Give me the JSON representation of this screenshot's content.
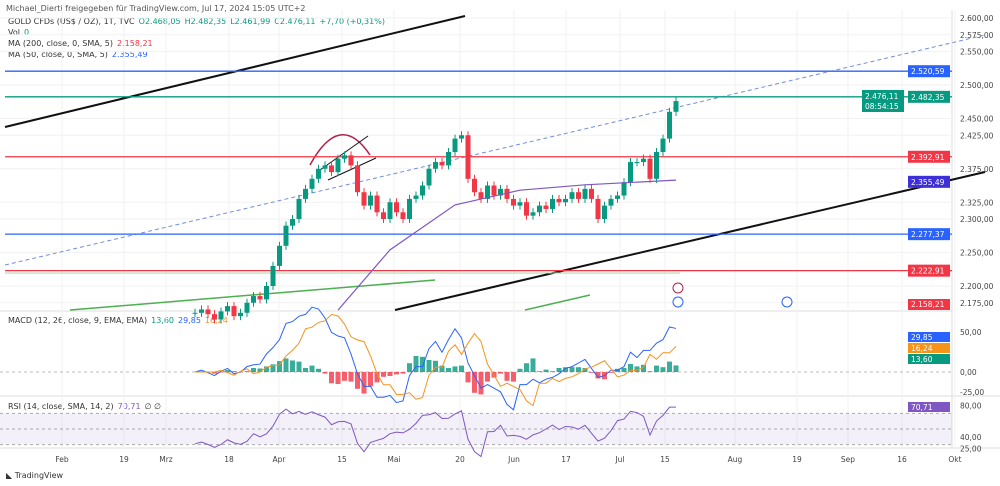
{
  "header": {
    "shared_by": "Michael_Dierti freigegeben für TradingView.com, Jul 17, 2024 15:05 UTC+2"
  },
  "legend": {
    "symbol": "GOLD CFDs (US$ / OZ), 1T, TVC",
    "o": "O2.468,05",
    "h": "H2.482,35",
    "l": "L2.461,99",
    "c": "C2.476,11",
    "chg": "+7,70 (+0,31%)",
    "vol_label": "Vol",
    "vol": "0",
    "ma200_label": "MA (200, close, 0, SMA, 5)",
    "ma200": "2.158,21",
    "ma50_label": "MA (50, close, 0, SMA, 5)",
    "ma50": "2.355,49"
  },
  "macd_legend": {
    "label": "MACD (12, 26, close, 9, EMA, EMA)",
    "hist": "13,60",
    "macd": "29,85",
    "signal": "16,24"
  },
  "rsi_legend": {
    "label": "RSI (14, close, SMA, 14, 2)",
    "rsi": "70,71",
    "extra": "∅ ∅"
  },
  "footer": {
    "brand": "TradingView"
  },
  "colors": {
    "up": "#089981",
    "down": "#f23645",
    "blue": "#2962ff",
    "ma50": "#7e57c2",
    "orange": "#f7931a"
  },
  "chart_data": {
    "type": "candlestick",
    "price_ticks": [
      "2.600,00",
      "2.575,00",
      "2.550,00",
      "2.500,00",
      "2.450,00",
      "2.425,00",
      "2.375,00",
      "2.325,00",
      "2.300,00",
      "2.250,00",
      "2.200,00",
      "2.175,00"
    ],
    "price_tick_values": [
      2600,
      2575,
      2550,
      2500,
      2450,
      2425,
      2375,
      2325,
      2300,
      2250,
      2200,
      2175
    ],
    "ylim": [
      2145,
      2610
    ],
    "x_ticks": [
      "Feb",
      "19",
      "Mrz",
      "18",
      "Apr",
      "15",
      "Mai",
      "20",
      "Jun",
      "17",
      "Jul",
      "15",
      "Aug",
      "19",
      "Sep",
      "16",
      "Okt"
    ],
    "closes": [
      2160,
      2165,
      2158,
      2150,
      2162,
      2170,
      2155,
      2160,
      2175,
      2185,
      2180,
      2200,
      2230,
      2260,
      2290,
      2300,
      2330,
      2345,
      2360,
      2375,
      2380,
      2370,
      2390,
      2395,
      2380,
      2340,
      2320,
      2335,
      2310,
      2300,
      2325,
      2310,
      2300,
      2330,
      2335,
      2350,
      2375,
      2385,
      2380,
      2400,
      2420,
      2425,
      2360,
      2340,
      2330,
      2350,
      2335,
      2345,
      2330,
      2320,
      2325,
      2305,
      2310,
      2320,
      2315,
      2330,
      2325,
      2330,
      2340,
      2330,
      2345,
      2330,
      2300,
      2320,
      2330,
      2335,
      2355,
      2385,
      2385,
      2390,
      2360,
      2400,
      2420,
      2460,
      2476
    ],
    "ma50": [
      [
        22,
        2164
      ],
      [
        30,
        2254
      ],
      [
        40,
        2321
      ],
      [
        50,
        2343
      ],
      [
        60,
        2351
      ],
      [
        74,
        2358
      ]
    ],
    "price_levels": [
      {
        "label": "2.520,59",
        "value": 2520.59,
        "color": "#2962ff"
      },
      {
        "label": "2.482,35",
        "value": 2482.35,
        "color": "#089981"
      },
      {
        "label": "2.392,91",
        "value": 2392.91,
        "color": "#f23645"
      },
      {
        "label": "2.277,37",
        "value": 2277.37,
        "color": "#2962ff"
      },
      {
        "label": "2.222,91",
        "value": 2222.91,
        "color": "#f23645"
      }
    ],
    "last_price": {
      "label": "2.476,11",
      "countdown": "08:54:15"
    },
    "ma50_tag": "2.355,49",
    "ma200_tag": "2.158,21",
    "macd": {
      "ticks": [
        "50,00",
        "0,00",
        "-25,00"
      ],
      "tick_values": [
        50,
        0,
        -25
      ],
      "tags": [
        "29,85",
        "16,24",
        "13,60"
      ]
    },
    "rsi": {
      "ticks": [
        "80,00",
        "40,00",
        "25,00"
      ],
      "tick_values": [
        80,
        40,
        25
      ],
      "tag": "70,71"
    }
  }
}
